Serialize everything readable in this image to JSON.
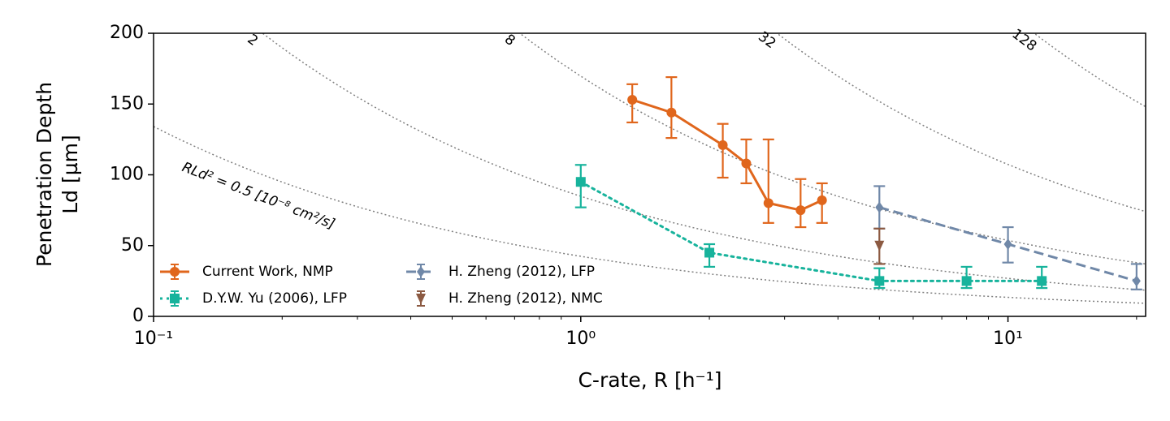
{
  "chart_data": {
    "type": "errorbar",
    "xlabel": "C-rate, R [h⁻¹]",
    "ylabel": [
      "Penetration Depth",
      "Ld [µm]"
    ],
    "xscale": "log",
    "xlim": [
      0.1,
      21
    ],
    "xticks": [
      {
        "value": 0.1,
        "label": "10⁻¹"
      },
      {
        "value": 1,
        "label": "10⁰"
      },
      {
        "value": 10,
        "label": "10¹"
      }
    ],
    "xminorticks": [
      0.2,
      0.3,
      0.4,
      0.5,
      0.6,
      0.7,
      0.8,
      0.9,
      2,
      3,
      4,
      5,
      6,
      7,
      8,
      9,
      20
    ],
    "ylim": [
      0,
      200
    ],
    "yticks": [
      0,
      50,
      100,
      150,
      200
    ],
    "legend": "lower left",
    "contours": [
      {
        "value": 0.5,
        "label": "RLd² = 0.5 [10⁻⁸ cm²/s]"
      },
      2,
      8,
      32,
      128
    ],
    "series": [
      {
        "name": "Current Work, NMP",
        "color": "#e0661c",
        "marker": "circle",
        "linestyle": "solid",
        "x": [
          1.32,
          1.63,
          2.15,
          2.44,
          2.75,
          3.27,
          3.67
        ],
        "values": [
          153,
          144,
          121,
          108,
          80,
          75,
          82
        ],
        "yerr_minus": [
          16,
          18,
          23,
          14,
          14,
          12,
          16
        ],
        "yerr_plus": [
          11,
          25,
          15,
          17,
          45,
          22,
          12
        ]
      },
      {
        "name": "D.Y.W. Yu (2006), LFP",
        "color": "#17b39c",
        "marker": "square",
        "linestyle": "dotted",
        "x": [
          1,
          2,
          5,
          8,
          12
        ],
        "values": [
          95,
          45,
          25,
          25,
          25
        ],
        "yerr_minus": [
          18,
          10,
          5,
          5,
          5
        ],
        "yerr_plus": [
          12,
          6,
          9,
          10,
          10
        ]
      },
      {
        "name": "H. Zheng (2012), LFP",
        "color": "#7088a8",
        "marker": "diamond",
        "linestyle": "dashed",
        "x": [
          5,
          10,
          20
        ],
        "values": [
          77,
          51,
          25
        ],
        "yerr_minus": [
          15,
          13,
          6
        ],
        "yerr_plus": [
          15,
          12,
          12
        ]
      },
      {
        "name": "H. Zheng (2012), NMC",
        "color": "#8c5a42",
        "marker": "triangle-down",
        "linestyle": "none",
        "x": [
          5
        ],
        "values": [
          50
        ],
        "yerr_minus": [
          13
        ],
        "yerr_plus": [
          12
        ]
      }
    ]
  }
}
